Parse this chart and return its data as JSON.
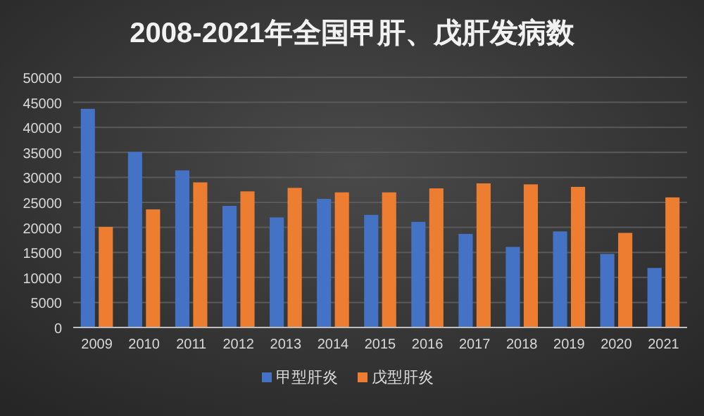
{
  "chart_data": {
    "type": "bar",
    "title": "2008-2021年全国甲肝、戊肝发病数",
    "categories": [
      "2009",
      "2010",
      "2011",
      "2012",
      "2013",
      "2014",
      "2015",
      "2016",
      "2017",
      "2018",
      "2019",
      "2020",
      "2021"
    ],
    "series": [
      {
        "name": "甲型肝炎",
        "color": "#4472c4",
        "values": [
          43700,
          35100,
          31400,
          24300,
          22000,
          25700,
          22500,
          21100,
          18700,
          16100,
          19200,
          14700,
          11900
        ]
      },
      {
        "name": "戊型肝炎",
        "color": "#ed7d31",
        "values": [
          20100,
          23600,
          29000,
          27200,
          27900,
          27000,
          27000,
          27800,
          28800,
          28600,
          28100,
          18900,
          26000
        ]
      }
    ],
    "ylim": [
      0,
      50000
    ],
    "yticks": [
      0,
      5000,
      10000,
      15000,
      20000,
      25000,
      30000,
      35000,
      40000,
      45000,
      50000
    ],
    "grid": "y",
    "legend": "bottom"
  }
}
